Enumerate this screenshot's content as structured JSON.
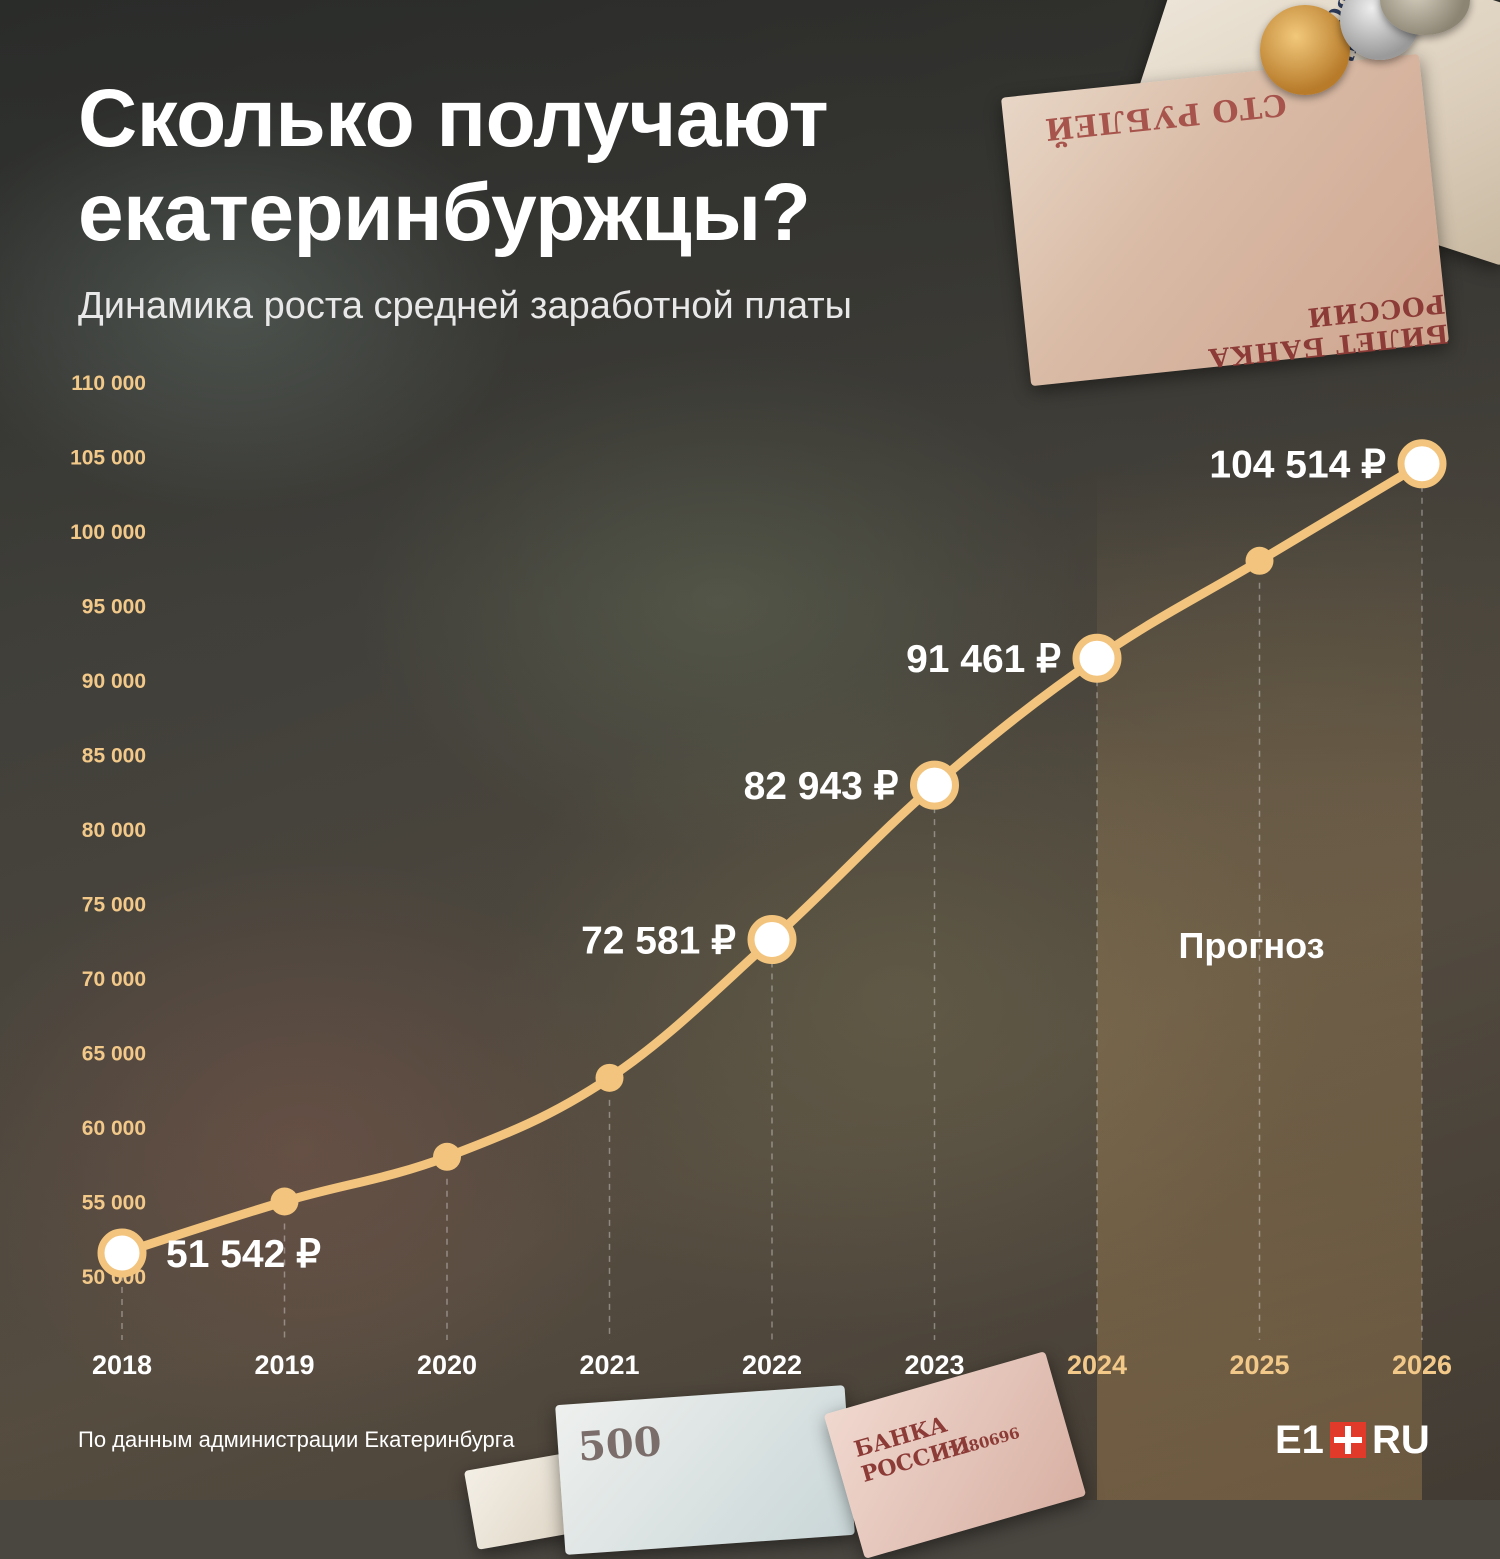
{
  "title_lines": [
    "Сколько получают",
    "екатеринбуржцы?"
  ],
  "subtitle": "Динамика роста средней заработной платы",
  "source": "По данным администрации Екатеринбурга",
  "logo": {
    "left": "E1",
    "right": "RU"
  },
  "colors": {
    "line": "#f2c47d",
    "point_fill": "#ffffff",
    "ytick": "#f3c98a",
    "forecast_year": "#f3c98a",
    "logo_accent": "#e23a2a"
  },
  "chart_data": {
    "type": "line",
    "title": "Сколько получают екатеринбуржцы?",
    "subtitle": "Динамика роста средней заработной платы",
    "x": [
      "2018",
      "2019",
      "2020",
      "2021",
      "2022",
      "2023",
      "2024",
      "2025",
      "2026"
    ],
    "values": [
      51542,
      55000,
      58000,
      63300,
      72581,
      82943,
      91461,
      98000,
      104514
    ],
    "labeled_points": [
      {
        "x": "2018",
        "label": "51 542 ₽"
      },
      {
        "x": "2022",
        "label": "72 581 ₽"
      },
      {
        "x": "2023",
        "label": "82 943 ₽"
      },
      {
        "x": "2024",
        "label": "91 461 ₽"
      },
      {
        "x": "2026",
        "label": "104 514 ₽"
      }
    ],
    "ylim": [
      50000,
      110000
    ],
    "yticks": [
      "50 000",
      "55 000",
      "60 000",
      "65 000",
      "70 000",
      "75 000",
      "80 000",
      "85 000",
      "90 000",
      "95 000",
      "100 000",
      "105 000",
      "110 000"
    ],
    "forecast_start": "2024",
    "forecast_label": "Прогноз",
    "grid": "vertical dashed lines at each year",
    "legend": "none"
  }
}
